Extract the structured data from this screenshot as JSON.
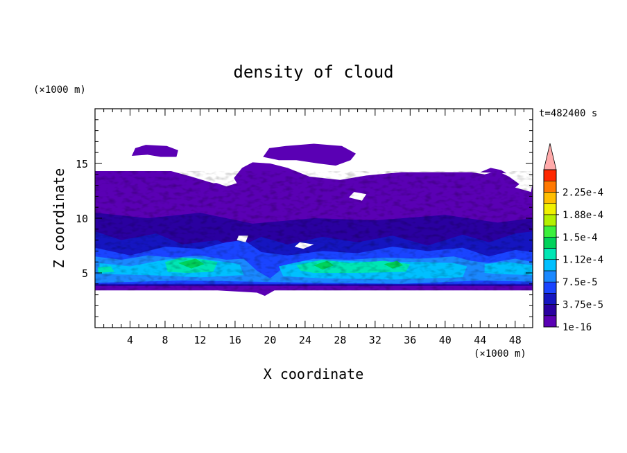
{
  "chart_data": {
    "type": "heatmap",
    "title": "density of cloud",
    "xlabel": "X coordinate",
    "ylabel": "Z coordinate",
    "x_unit": "(×1000 m)",
    "y_unit": "(×1000 m)",
    "time_label": "t=482400 s",
    "xlim": [
      0,
      50
    ],
    "ylim": [
      0,
      20
    ],
    "x_ticks": [
      4,
      8,
      12,
      16,
      20,
      24,
      28,
      32,
      36,
      40,
      44,
      48
    ],
    "y_ticks": [
      5,
      10,
      15
    ],
    "grid": false,
    "colorbar": {
      "labels": [
        "1e-16",
        "3.75e-5",
        "7.5e-5",
        "1.12e-4",
        "1.5e-4",
        "1.88e-4",
        "2.25e-4"
      ],
      "levels": [
        1e-16,
        1.875e-05,
        3.75e-05,
        5.625e-05,
        7.5e-05,
        9.375e-05,
        0.0001125,
        0.00013125,
        0.00015,
        0.00016875,
        0.0001875,
        0.00020625,
        0.000225,
        0.00024375
      ],
      "colors": [
        "#5a00b4",
        "#2a00a0",
        "#1515c0",
        "#1a44ff",
        "#1a88ff",
        "#00c0ff",
        "#00e6b4",
        "#00d25a",
        "#3cf03c",
        "#b4f000",
        "#f0f000",
        "#ffbe00",
        "#ff7800",
        "#ff2800"
      ],
      "extend_max_color": "#ffaaaa",
      "position": "right"
    },
    "cloud_regions": [
      {
        "level": 0,
        "x": [
          0,
          50
        ],
        "z": [
          3.4,
          14.3
        ],
        "note_level_index": 0
      },
      {
        "level": 0,
        "x": [
          3.2,
          9.5
        ],
        "z": [
          15.6,
          16.7
        ]
      },
      {
        "level": 0,
        "x": [
          19.0,
          30.0
        ],
        "z": [
          15.2,
          16.8
        ]
      },
      {
        "level": 3,
        "x": [
          0,
          50
        ],
        "z": [
          4.0,
          7.0
        ]
      },
      {
        "level": 6,
        "x": [
          7.5,
          14.5
        ],
        "z": [
          5.0,
          6.5
        ]
      },
      {
        "level": 7,
        "x": [
          23.0,
          36.0
        ],
        "z": [
          5.0,
          6.2
        ]
      }
    ]
  }
}
